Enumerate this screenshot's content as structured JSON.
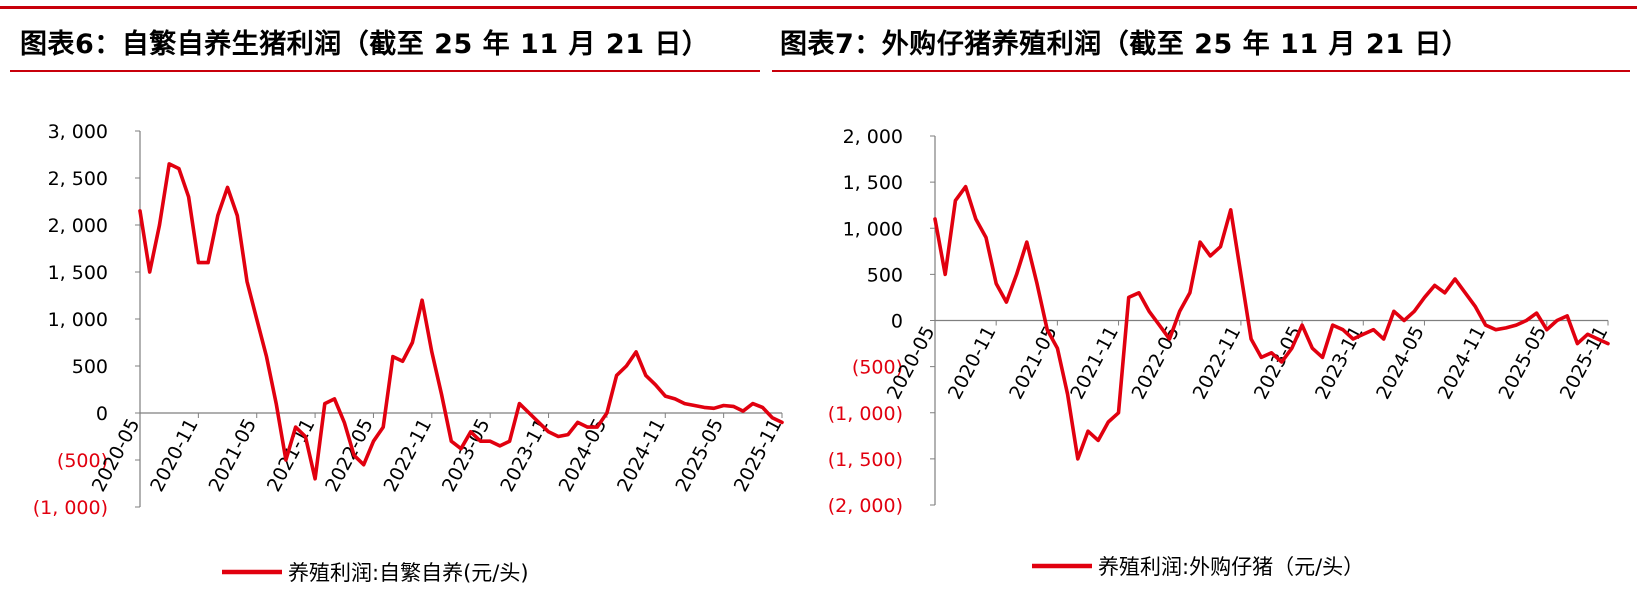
{
  "header": {
    "left_title": "图表6：自繁自养生猪利润（截至 25 年 11 月 21 日）",
    "right_title": "图表7：外购仔猪养殖利润（截至 25 年 11 月 21 日）"
  },
  "colors": {
    "accent": "#c8000b",
    "series": "#e1000f",
    "negative_label": "#e1000f",
    "axis": "#7f7f7f"
  },
  "chart_data": [
    {
      "type": "line",
      "xticks": [
        "2020-05",
        "2020-11",
        "2021-05",
        "2021-11",
        "2022-05",
        "2022-11",
        "2023-05",
        "2023-11",
        "2024-05",
        "2024-11",
        "2025-05",
        "2025-11"
      ],
      "yticks": [
        3000,
        2500,
        2000,
        1500,
        1000,
        500,
        0,
        -500,
        -1000
      ],
      "ytick_labels": [
        "3, 000",
        "2, 500",
        "2, 000",
        "1, 500",
        "1, 000",
        "500",
        "0",
        "(500)",
        "(1, 000)"
      ],
      "ylim": [
        -1000,
        3000
      ],
      "x_range": [
        "2020-05",
        "2025-11"
      ],
      "legend": "养殖利润:自繁自养(元/头)",
      "legend_position": "bottom",
      "series": [
        {
          "name": "养殖利润:自繁自养(元/头)",
          "x": [
            "2020-05",
            "2020-06",
            "2020-07",
            "2020-08",
            "2020-09",
            "2020-10",
            "2020-11",
            "2020-12",
            "2021-01",
            "2021-02",
            "2021-03",
            "2021-04",
            "2021-05",
            "2021-06",
            "2021-07",
            "2021-08",
            "2021-09",
            "2021-10",
            "2021-11",
            "2021-12",
            "2022-01",
            "2022-02",
            "2022-03",
            "2022-04",
            "2022-05",
            "2022-06",
            "2022-07",
            "2022-08",
            "2022-09",
            "2022-10",
            "2022-11",
            "2022-12",
            "2023-01",
            "2023-02",
            "2023-03",
            "2023-04",
            "2023-05",
            "2023-06",
            "2023-07",
            "2023-08",
            "2023-09",
            "2023-10",
            "2023-11",
            "2023-12",
            "2024-01",
            "2024-02",
            "2024-03",
            "2024-04",
            "2024-05",
            "2024-06",
            "2024-07",
            "2024-08",
            "2024-09",
            "2024-10",
            "2024-11",
            "2024-12",
            "2025-01",
            "2025-02",
            "2025-03",
            "2025-04",
            "2025-05",
            "2025-06",
            "2025-07",
            "2025-08",
            "2025-09",
            "2025-10",
            "2025-11"
          ],
          "values": [
            2150,
            1500,
            2000,
            2650,
            2600,
            2300,
            1600,
            1600,
            2100,
            2400,
            2100,
            1400,
            1000,
            600,
            100,
            -500,
            -150,
            -250,
            -700,
            100,
            150,
            -100,
            -450,
            -550,
            -300,
            -150,
            600,
            550,
            750,
            1200,
            650,
            200,
            -300,
            -380,
            -200,
            -300,
            -300,
            -350,
            -300,
            100,
            0,
            -100,
            -200,
            -250,
            -230,
            -100,
            -150,
            -150,
            0,
            400,
            500,
            650,
            400,
            300,
            180,
            150,
            100,
            80,
            60,
            50,
            80,
            70,
            20,
            100,
            60,
            -50,
            -100
          ]
        }
      ]
    },
    {
      "type": "line",
      "xticks": [
        "2020-05",
        "2020-11",
        "2021-05",
        "2021-11",
        "2022-05",
        "2022-11",
        "2023-05",
        "2023-11",
        "2024-05",
        "2024-11",
        "2025-05",
        "2025-11"
      ],
      "yticks": [
        2000,
        1500,
        1000,
        500,
        0,
        -500,
        -1000,
        -1500,
        -2000
      ],
      "ytick_labels": [
        "2, 000",
        "1, 500",
        "1, 000",
        "500",
        "0",
        "(500)",
        "(1, 000)",
        "(1, 500)",
        "(2, 000)"
      ],
      "ylim": [
        -2000,
        2000
      ],
      "x_range": [
        "2020-05",
        "2025-11"
      ],
      "legend": "养殖利润:外购仔猪（元/头）",
      "legend_position": "bottom",
      "series": [
        {
          "name": "养殖利润:外购仔猪（元/头）",
          "x": [
            "2020-05",
            "2020-06",
            "2020-07",
            "2020-08",
            "2020-09",
            "2020-10",
            "2020-11",
            "2020-12",
            "2021-01",
            "2021-02",
            "2021-03",
            "2021-04",
            "2021-05",
            "2021-06",
            "2021-07",
            "2021-08",
            "2021-09",
            "2021-10",
            "2021-11",
            "2021-12",
            "2022-01",
            "2022-02",
            "2022-03",
            "2022-04",
            "2022-05",
            "2022-06",
            "2022-07",
            "2022-08",
            "2022-09",
            "2022-10",
            "2022-11",
            "2022-12",
            "2023-01",
            "2023-02",
            "2023-03",
            "2023-04",
            "2023-05",
            "2023-06",
            "2023-07",
            "2023-08",
            "2023-09",
            "2023-10",
            "2023-11",
            "2023-12",
            "2024-01",
            "2024-02",
            "2024-03",
            "2024-04",
            "2024-05",
            "2024-06",
            "2024-07",
            "2024-08",
            "2024-09",
            "2024-10",
            "2024-11",
            "2024-12",
            "2025-01",
            "2025-02",
            "2025-03",
            "2025-04",
            "2025-05",
            "2025-06",
            "2025-07",
            "2025-08",
            "2025-09",
            "2025-10",
            "2025-11"
          ],
          "values": [
            1100,
            500,
            1300,
            1450,
            1100,
            900,
            400,
            200,
            500,
            850,
            400,
            -100,
            -300,
            -800,
            -1500,
            -1200,
            -1300,
            -1100,
            -1000,
            250,
            300,
            100,
            -50,
            -200,
            100,
            300,
            850,
            700,
            800,
            1200,
            500,
            -200,
            -400,
            -350,
            -450,
            -300,
            -50,
            -300,
            -400,
            -50,
            -100,
            -200,
            -150,
            -100,
            -200,
            100,
            0,
            100,
            250,
            380,
            300,
            450,
            300,
            150,
            -50,
            -100,
            -80,
            -50,
            0,
            80,
            -100,
            0,
            50,
            -250,
            -150,
            -200,
            -250
          ]
        }
      ]
    }
  ]
}
